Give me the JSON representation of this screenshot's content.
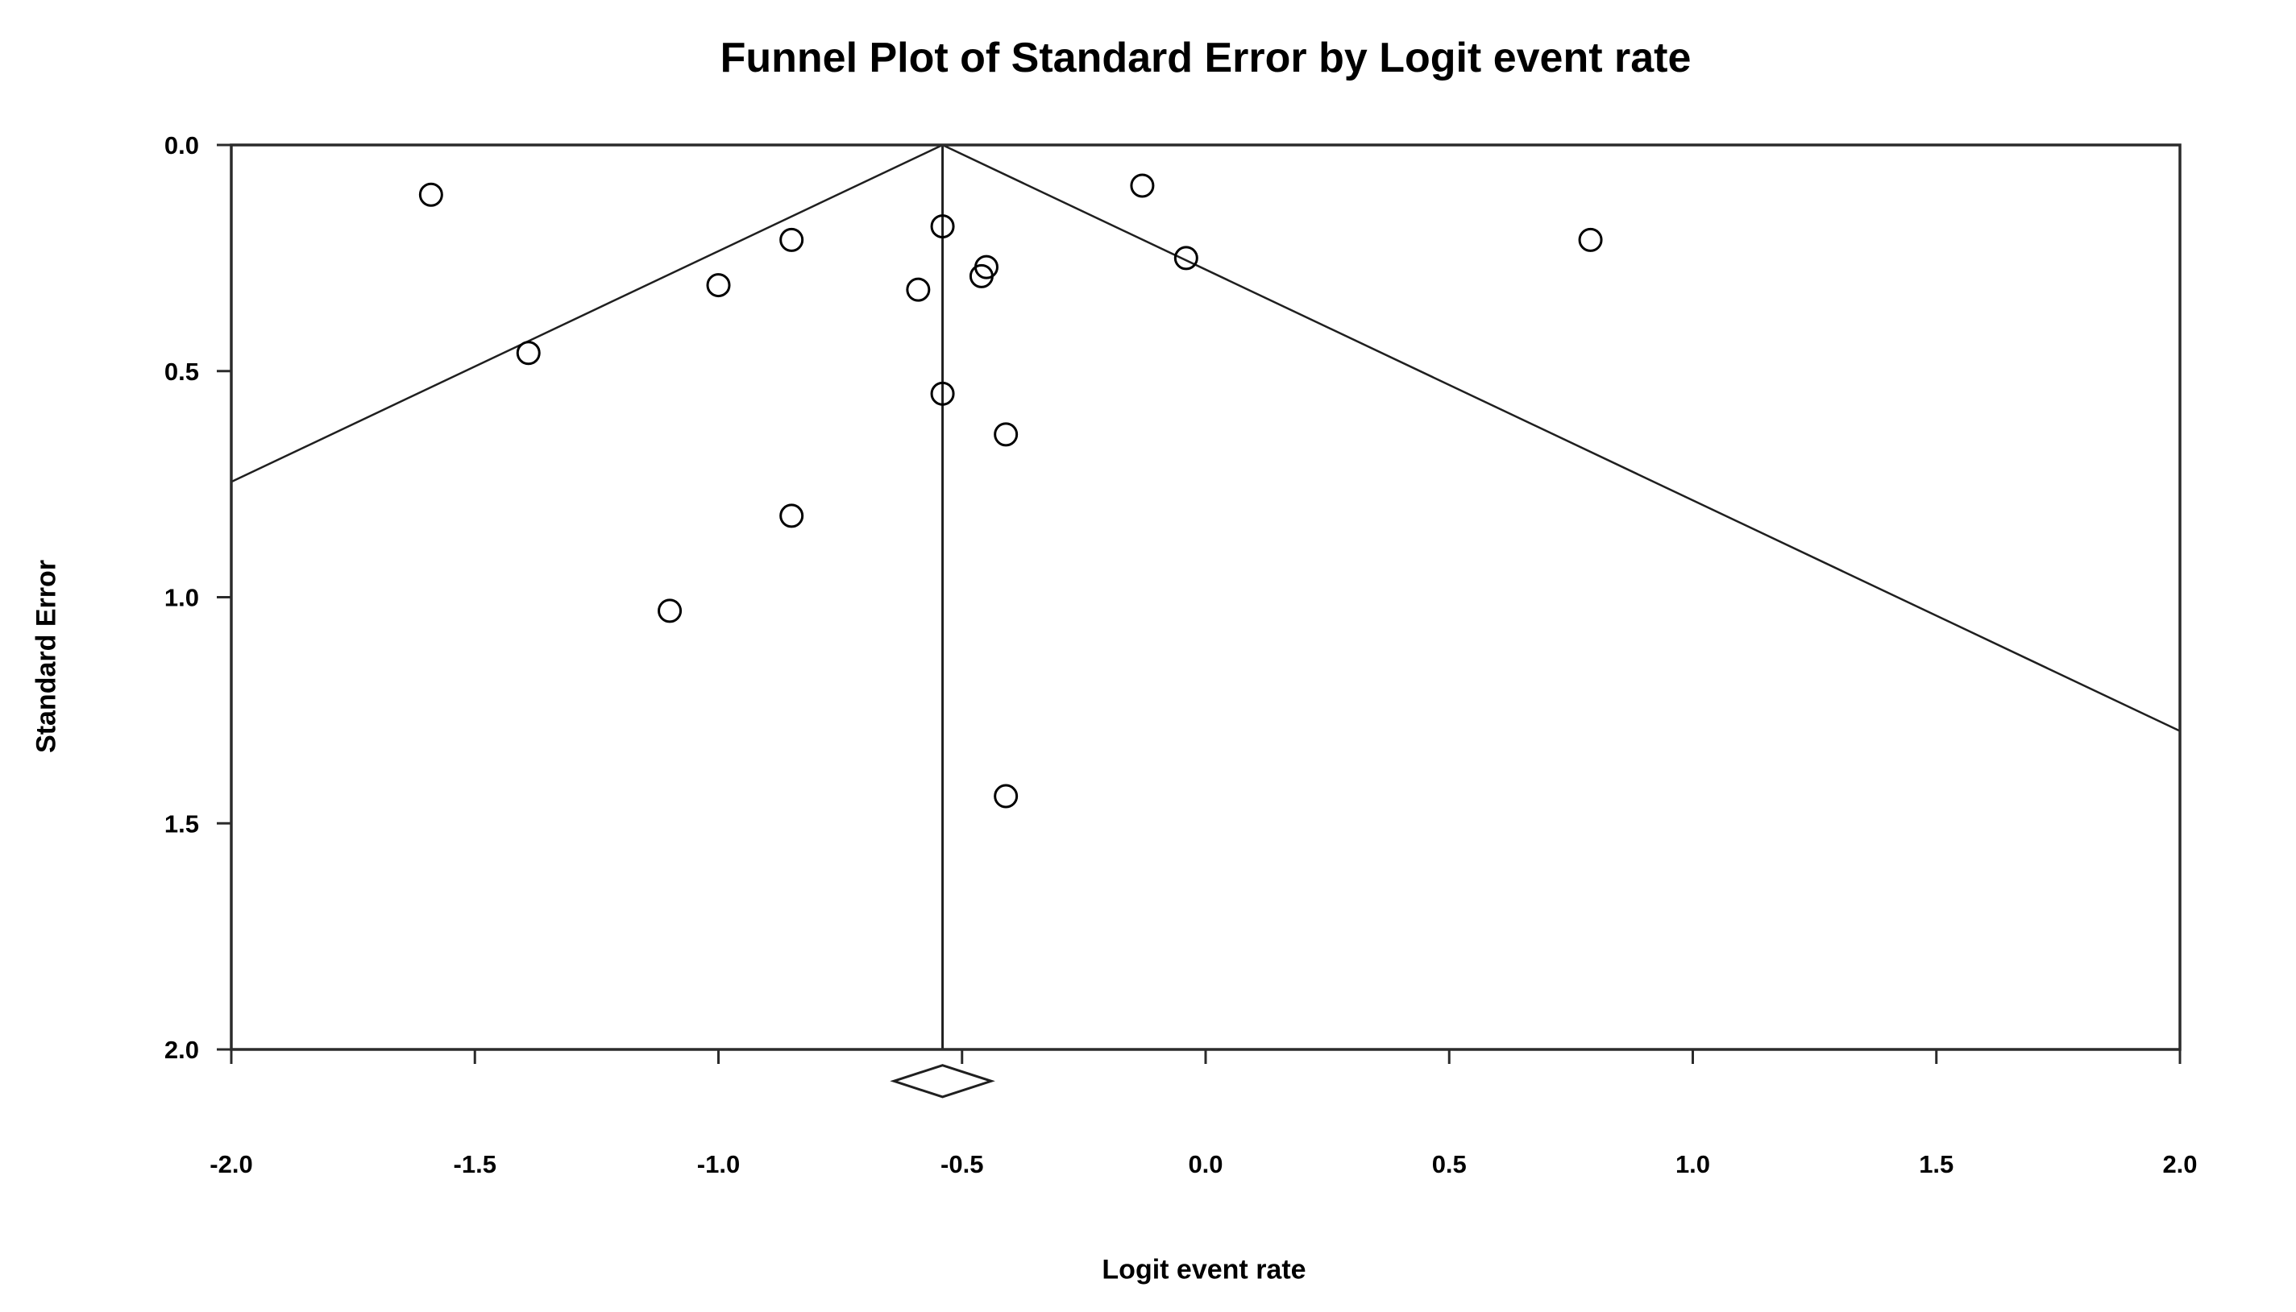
{
  "chart_data": {
    "type": "scatter",
    "subtype": "funnel-plot",
    "title": "Funnel Plot of Standard Error by Logit event rate",
    "xlabel": "Logit event rate",
    "ylabel": "Standard Error",
    "xlim": [
      -2.0,
      2.0
    ],
    "ylim": [
      0.0,
      2.0
    ],
    "y_inverted": true,
    "grid": false,
    "legend": "none",
    "x_ticks": [
      "-2.0",
      "-1.5",
      "-1.0",
      "-0.5",
      "0.0",
      "0.5",
      "1.0",
      "1.5",
      "2.0"
    ],
    "y_ticks": [
      "0.0",
      "0.5",
      "1.0",
      "1.5",
      "2.0"
    ],
    "points": [
      {
        "x": -1.59,
        "se": 0.11
      },
      {
        "x": -1.39,
        "se": 0.46
      },
      {
        "x": -1.1,
        "se": 1.03
      },
      {
        "x": -1.0,
        "se": 0.31
      },
      {
        "x": -0.85,
        "se": 0.21
      },
      {
        "x": -0.85,
        "se": 0.82
      },
      {
        "x": -0.59,
        "se": 0.32
      },
      {
        "x": -0.54,
        "se": 0.18
      },
      {
        "x": -0.54,
        "se": 0.55
      },
      {
        "x": -0.46,
        "se": 0.29
      },
      {
        "x": -0.45,
        "se": 0.27
      },
      {
        "x": -0.41,
        "se": 0.64
      },
      {
        "x": -0.41,
        "se": 1.44
      },
      {
        "x": -0.13,
        "se": 0.09
      },
      {
        "x": -0.04,
        "se": 0.25
      },
      {
        "x": 0.79,
        "se": 0.21
      }
    ],
    "mean_logit": -0.54,
    "ci_multiplier": 1.96,
    "funnel_lines": {
      "apex_x": -0.54,
      "apex_se": 0.0,
      "se_at_left_edge": 0.745,
      "se_at_right_edge": 1.295
    },
    "summary_diamond": {
      "x": -0.54,
      "se": 2.07,
      "half_width": 0.1,
      "half_height": 0.035
    },
    "marker": {
      "shape": "circle",
      "fill": "none",
      "stroke": "#000000"
    },
    "colors": {
      "text": "#000000",
      "axis_box": "#2b2b2b",
      "funnel_line": "#1f1f1f",
      "background": "#ffffff"
    }
  }
}
